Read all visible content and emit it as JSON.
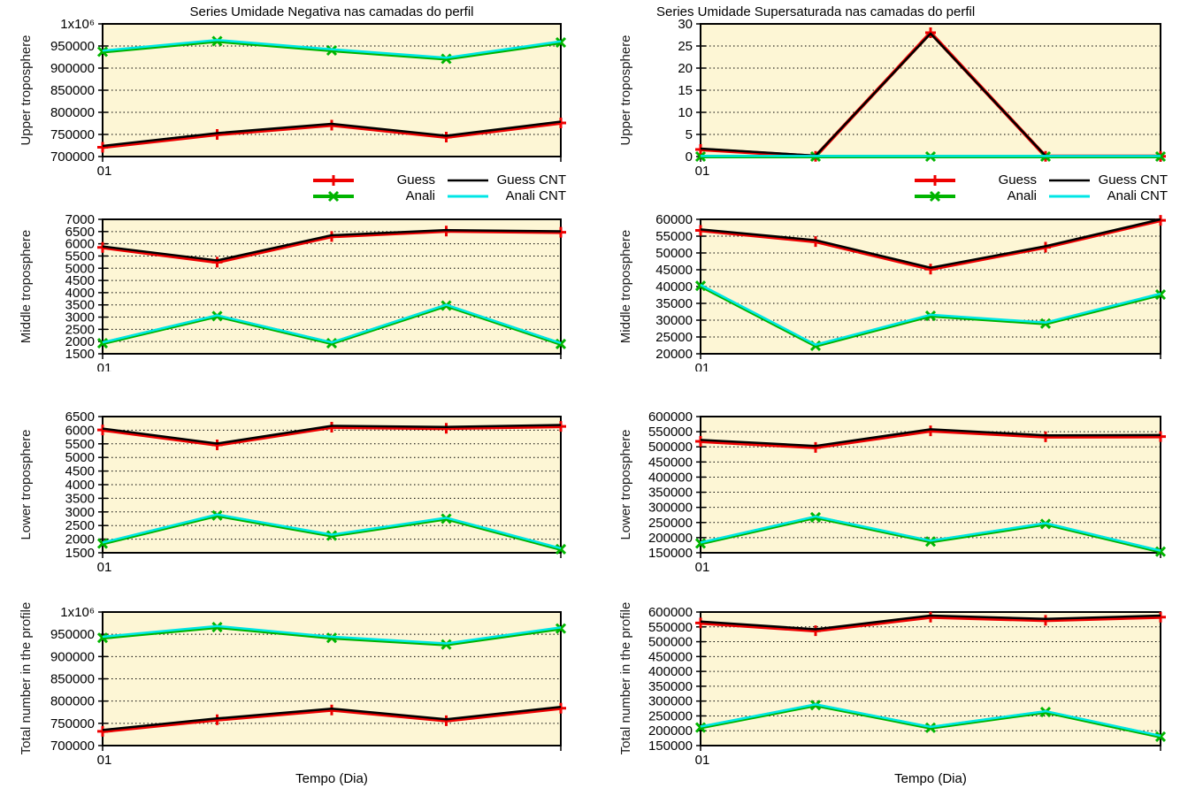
{
  "figure": {
    "columns": [
      {
        "title": "Series Umidade Negativa nas camadas do perfil"
      },
      {
        "title": "Series Umidade Supersaturada nas camadas do perfil"
      }
    ],
    "xlabel": "Tempo (Dia)",
    "xtick_label": "01",
    "legend": {
      "position": "below first row, per column",
      "entries": [
        {
          "label": "Guess",
          "color": "#ee0000",
          "marker": "plus"
        },
        {
          "label": "Anali",
          "color": "#00b400",
          "marker": "x"
        },
        {
          "label": "Guess CNT",
          "color": "#000000",
          "marker": "none"
        },
        {
          "label": "Anali CNT",
          "color": "#00e6e6",
          "marker": "none"
        }
      ]
    },
    "colors": {
      "plot_bg": "#fdf6d5",
      "grid": "#000000",
      "border": "#000000",
      "text": "#000000"
    }
  },
  "chart_data": [
    {
      "id": "negativa-upper",
      "type": "line",
      "column": 0,
      "row": 0,
      "ylabel": "Upper troposphere",
      "ylim": [
        700000,
        1000000
      ],
      "yticks": [
        700000,
        750000,
        800000,
        850000,
        900000,
        950000,
        1000000
      ],
      "ytick_labels": [
        "700000",
        "750000",
        "800000",
        "850000",
        "900000",
        "950000",
        "1x10⁶"
      ],
      "x": [
        1,
        2,
        3,
        4,
        5
      ],
      "xtick_label": "01",
      "grid": true,
      "series": [
        {
          "name": "Guess",
          "values": [
            721000,
            750000,
            771000,
            744000,
            776000
          ]
        },
        {
          "name": "Anali",
          "values": [
            937000,
            961000,
            940000,
            921000,
            958000
          ]
        },
        {
          "name": "Guess CNT",
          "values": [
            724000,
            753000,
            774000,
            747000,
            779000
          ]
        },
        {
          "name": "Anali CNT",
          "values": [
            939500,
            963500,
            942500,
            923500,
            960500
          ]
        }
      ]
    },
    {
      "id": "supersaturada-upper",
      "type": "line",
      "column": 1,
      "row": 0,
      "ylabel": "Upper troposphere",
      "ylim": [
        0,
        30
      ],
      "yticks": [
        0,
        5,
        10,
        15,
        20,
        25,
        30
      ],
      "ytick_labels": [
        "0",
        "5",
        "10",
        "15",
        "20",
        "25",
        "30"
      ],
      "x": [
        1,
        2,
        3,
        4,
        5
      ],
      "xtick_label": "01",
      "grid": true,
      "series": [
        {
          "name": "Guess",
          "values": [
            1.6,
            0.05,
            28,
            0.05,
            0.05
          ]
        },
        {
          "name": "Anali",
          "values": [
            0,
            0,
            0,
            0,
            0
          ]
        },
        {
          "name": "Guess CNT",
          "values": [
            1.8,
            0.2,
            27.8,
            0.15,
            0.15
          ]
        },
        {
          "name": "Anali CNT",
          "values": [
            0.12,
            0.12,
            0.12,
            0.12,
            0.12
          ]
        }
      ]
    },
    {
      "id": "negativa-middle",
      "type": "line",
      "column": 0,
      "row": 1,
      "ylabel": "Middle troposphere",
      "ylim": [
        1500,
        7000
      ],
      "yticks": [
        1500,
        2000,
        2500,
        3000,
        3500,
        4000,
        4500,
        5000,
        5500,
        6000,
        6500,
        7000
      ],
      "ytick_labels": [
        "1500",
        "2000",
        "2500",
        "3000",
        "3500",
        "4000",
        "4500",
        "5000",
        "5500",
        "6000",
        "6500",
        "7000"
      ],
      "x": [
        1,
        2,
        3,
        4,
        5
      ],
      "xtick_label": "01",
      "grid": true,
      "series": [
        {
          "name": "Guess",
          "values": [
            5850,
            5250,
            6300,
            6520,
            6470
          ]
        },
        {
          "name": "Anali",
          "values": [
            1930,
            3040,
            1930,
            3470,
            1900
          ]
        },
        {
          "name": "Guess CNT",
          "values": [
            5890,
            5320,
            6350,
            6560,
            6510
          ]
        },
        {
          "name": "Anali CNT",
          "values": [
            1965,
            3075,
            1965,
            3505,
            1935
          ]
        }
      ]
    },
    {
      "id": "supersaturada-middle",
      "type": "line",
      "column": 1,
      "row": 1,
      "ylabel": "Middle troposphere",
      "ylim": [
        20000,
        60000
      ],
      "yticks": [
        20000,
        25000,
        30000,
        35000,
        40000,
        45000,
        50000,
        55000,
        60000
      ],
      "ytick_labels": [
        "20000",
        "25000",
        "30000",
        "35000",
        "40000",
        "45000",
        "50000",
        "55000",
        "60000"
      ],
      "x": [
        1,
        2,
        3,
        4,
        5
      ],
      "xtick_label": "01",
      "grid": true,
      "series": [
        {
          "name": "Guess",
          "values": [
            56700,
            53400,
            45200,
            51700,
            59700
          ]
        },
        {
          "name": "Anali",
          "values": [
            40200,
            22400,
            31300,
            29000,
            37600
          ]
        },
        {
          "name": "Guess CNT",
          "values": [
            57000,
            53800,
            45600,
            52000,
            60000
          ]
        },
        {
          "name": "Anali CNT",
          "values": [
            40500,
            22700,
            31600,
            29300,
            37900
          ]
        }
      ]
    },
    {
      "id": "negativa-lower",
      "type": "line",
      "column": 0,
      "row": 2,
      "ylabel": "Lower troposphere",
      "ylim": [
        1500,
        6500
      ],
      "yticks": [
        1500,
        2000,
        2500,
        3000,
        3500,
        4000,
        4500,
        5000,
        5500,
        6000,
        6500
      ],
      "ytick_labels": [
        "1500",
        "2000",
        "2500",
        "3000",
        "3500",
        "4000",
        "4500",
        "5000",
        "5500",
        "6000",
        "6500"
      ],
      "x": [
        1,
        2,
        3,
        4,
        5
      ],
      "xtick_label": "01",
      "grid": true,
      "series": [
        {
          "name": "Guess",
          "values": [
            6010,
            5460,
            6110,
            6070,
            6140
          ]
        },
        {
          "name": "Anali",
          "values": [
            1840,
            2870,
            2130,
            2750,
            1630
          ]
        },
        {
          "name": "Guess CNT",
          "values": [
            6060,
            5510,
            6160,
            6120,
            6190
          ]
        },
        {
          "name": "Anali CNT",
          "values": [
            1875,
            2905,
            2165,
            2785,
            1665
          ]
        }
      ]
    },
    {
      "id": "supersaturada-lower",
      "type": "line",
      "column": 1,
      "row": 2,
      "ylabel": "Lower troposphere",
      "ylim": [
        150000,
        600000
      ],
      "yticks": [
        150000,
        200000,
        250000,
        300000,
        350000,
        400000,
        450000,
        500000,
        550000,
        600000
      ],
      "ytick_labels": [
        "150000",
        "200000",
        "250000",
        "300000",
        "350000",
        "400000",
        "450000",
        "500000",
        "550000",
        "600000"
      ],
      "x": [
        1,
        2,
        3,
        4,
        5
      ],
      "xtick_label": "01",
      "grid": true,
      "series": [
        {
          "name": "Guess",
          "values": [
            518000,
            498000,
            553000,
            533000,
            534000
          ]
        },
        {
          "name": "Anali",
          "values": [
            181000,
            267000,
            187000,
            245000,
            154000
          ]
        },
        {
          "name": "Guess CNT",
          "values": [
            523000,
            503000,
            558000,
            538000,
            539000
          ]
        },
        {
          "name": "Anali CNT",
          "values": [
            184000,
            270000,
            190000,
            248000,
            157000
          ]
        }
      ]
    },
    {
      "id": "negativa-total",
      "type": "line",
      "column": 0,
      "row": 3,
      "ylabel": "Total number in the profile",
      "ylim": [
        700000,
        1000000
      ],
      "yticks": [
        700000,
        750000,
        800000,
        850000,
        900000,
        950000,
        1000000
      ],
      "ytick_labels": [
        "700000",
        "750000",
        "800000",
        "850000",
        "900000",
        "950000",
        "1x10⁶"
      ],
      "x": [
        1,
        2,
        3,
        4,
        5
      ],
      "xtick_label": "01",
      "grid": true,
      "series": [
        {
          "name": "Guess",
          "values": [
            732000,
            758000,
            780000,
            756000,
            784000
          ]
        },
        {
          "name": "Anali",
          "values": [
            942000,
            966000,
            942000,
            927000,
            963000
          ]
        },
        {
          "name": "Guess CNT",
          "values": [
            735000,
            761000,
            783000,
            759000,
            787000
          ]
        },
        {
          "name": "Anali CNT",
          "values": [
            944500,
            968500,
            944500,
            929500,
            965500
          ]
        }
      ]
    },
    {
      "id": "supersaturada-total",
      "type": "line",
      "column": 1,
      "row": 3,
      "ylabel": "Total number in the profile",
      "ylim": [
        150000,
        600000
      ],
      "yticks": [
        150000,
        200000,
        250000,
        300000,
        350000,
        400000,
        450000,
        500000,
        550000,
        600000
      ],
      "ytick_labels": [
        "150000",
        "200000",
        "250000",
        "300000",
        "350000",
        "400000",
        "450000",
        "500000",
        "550000",
        "600000"
      ],
      "x": [
        1,
        2,
        3,
        4,
        5
      ],
      "xtick_label": "01",
      "grid": true,
      "series": [
        {
          "name": "Guess",
          "values": [
            563000,
            537000,
            583000,
            572000,
            583000
          ]
        },
        {
          "name": "Anali",
          "values": [
            211000,
            286000,
            210000,
            263000,
            180000
          ]
        },
        {
          "name": "Guess CNT",
          "values": [
            568000,
            542000,
            588000,
            577000,
            588000
          ]
        },
        {
          "name": "Anali CNT",
          "values": [
            214000,
            289000,
            213000,
            266000,
            183000
          ]
        }
      ]
    }
  ]
}
